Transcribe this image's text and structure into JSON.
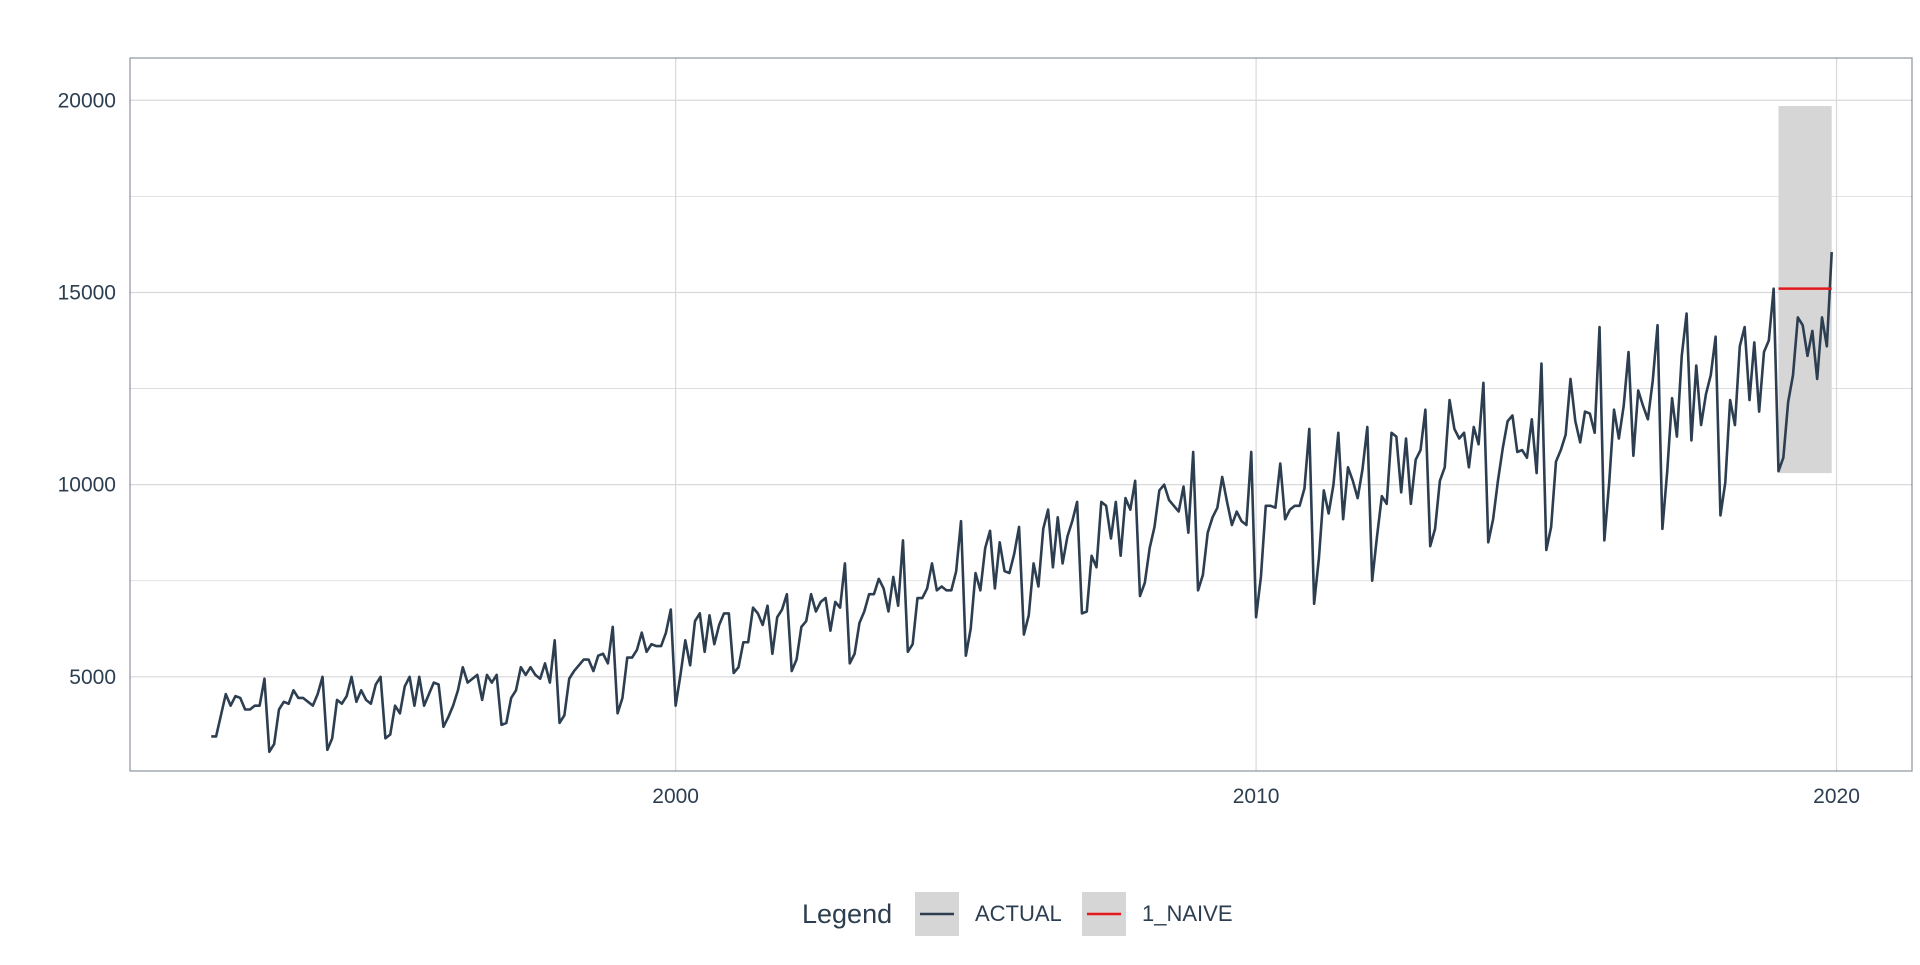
{
  "chart_data": {
    "type": "line",
    "title": "",
    "xlabel": "",
    "ylabel": "",
    "x_ticks": [
      "2000",
      "2010",
      "2020"
    ],
    "x_tick_values": [
      2000,
      2010,
      2020
    ],
    "y_ticks": [
      "5000",
      "10000",
      "15000",
      "20000"
    ],
    "y_tick_values": [
      5000,
      10000,
      15000,
      20000
    ],
    "xlim": [
      1990.6,
      2021.3
    ],
    "ylim": [
      2550,
      21100
    ],
    "grid": true,
    "legend": {
      "title": "Legend",
      "placement": "bottom",
      "entries": [
        {
          "label": "ACTUAL",
          "color": "#2c3e50"
        },
        {
          "label": "1_NAIVE",
          "color": "#e31a1c"
        }
      ]
    },
    "series": [
      {
        "name": "ACTUAL",
        "color": "#2c3e50",
        "x_start": 1992.0,
        "x_step": 0.083333,
        "values": [
          3450,
          3450,
          4000,
          4550,
          4250,
          4500,
          4450,
          4150,
          4150,
          4250,
          4250,
          4950,
          3050,
          3250,
          4150,
          4350,
          4300,
          4650,
          4450,
          4450,
          4350,
          4250,
          4550,
          5000,
          3100,
          3400,
          4400,
          4300,
          4500,
          5000,
          4350,
          4650,
          4400,
          4300,
          4800,
          5000,
          3400,
          3500,
          4250,
          4050,
          4750,
          5000,
          4250,
          5000,
          4250,
          4550,
          4850,
          4800,
          3700,
          3950,
          4250,
          4650,
          5250,
          4850,
          4950,
          5050,
          4400,
          5050,
          4850,
          5050,
          3750,
          3800,
          4450,
          4650,
          5250,
          5050,
          5250,
          5050,
          4950,
          5350,
          4850,
          5950,
          3800,
          4000,
          4950,
          5150,
          5300,
          5450,
          5450,
          5150,
          5550,
          5600,
          5350,
          6300,
          4050,
          4450,
          5500,
          5500,
          5700,
          6150,
          5650,
          5850,
          5800,
          5800,
          6150,
          6750,
          4250,
          5050,
          5950,
          5300,
          6450,
          6650,
          5650,
          6600,
          5850,
          6350,
          6650,
          6650,
          5100,
          5250,
          5900,
          5900,
          6800,
          6650,
          6350,
          6850,
          5600,
          6550,
          6750,
          7150,
          5150,
          5450,
          6300,
          6450,
          7150,
          6700,
          6950,
          7050,
          6200,
          6950,
          6800,
          7950,
          5350,
          5600,
          6400,
          6700,
          7150,
          7150,
          7550,
          7300,
          6700,
          7600,
          6850,
          8550,
          5650,
          5850,
          7050,
          7050,
          7300,
          7950,
          7250,
          7350,
          7250,
          7250,
          7750,
          9050,
          5550,
          6250,
          7700,
          7250,
          8350,
          8800,
          7300,
          8500,
          7750,
          7700,
          8200,
          8900,
          6100,
          6600,
          7950,
          7350,
          8850,
          9350,
          7850,
          9150,
          7950,
          8650,
          9050,
          9550,
          6650,
          6700,
          8150,
          7850,
          9550,
          9450,
          8600,
          9550,
          8150,
          9650,
          9350,
          10100,
          7100,
          7450,
          8350,
          8900,
          9850,
          10000,
          9600,
          9450,
          9300,
          9950,
          8750,
          10850,
          7250,
          7650,
          8750,
          9150,
          9400,
          10200,
          9550,
          8950,
          9300,
          9050,
          8950,
          10850,
          6550,
          7600,
          9450,
          9450,
          9400,
          10550,
          9100,
          9350,
          9450,
          9450,
          9900,
          11450,
          6900,
          8100,
          9850,
          9250,
          10000,
          11350,
          9100,
          10450,
          10100,
          9650,
          10400,
          11500,
          7500,
          8650,
          9700,
          9500,
          11350,
          11250,
          9800,
          11200,
          9500,
          10650,
          10900,
          11950,
          8400,
          8850,
          10100,
          10450,
          12200,
          11450,
          11200,
          11350,
          10450,
          11500,
          11050,
          12650,
          8500,
          9100,
          10100,
          10950,
          11650,
          11800,
          10850,
          10900,
          10700,
          11700,
          10300,
          13150,
          8300,
          8900,
          10600,
          10900,
          11300,
          12750,
          11650,
          11100,
          11900,
          11850,
          11350,
          14100,
          8550,
          10050,
          11950,
          11200,
          12050,
          13450,
          10750,
          12450,
          12050,
          11700,
          12700,
          14150,
          8850,
          10350,
          12250,
          11250,
          13350,
          14450,
          11150,
          13100,
          11550,
          12350,
          12850,
          13850,
          9200,
          10050,
          12200,
          11550,
          13600,
          14100,
          12200,
          13700,
          11900,
          13450,
          13750,
          15100,
          10350,
          10700,
          12150,
          12850,
          14350,
          14150,
          13350,
          14000,
          12750,
          14350,
          13600,
          16050
        ]
      },
      {
        "name": "1_NAIVE",
        "color": "#e31a1c",
        "x": [
          2019.0,
          2019.917
        ],
        "values": [
          15100,
          15100
        ]
      }
    ],
    "prediction_interval": {
      "x": [
        2019.0,
        2019.917
      ],
      "lower": 10300,
      "upper": 19850,
      "color": "#d6d6d6"
    }
  }
}
